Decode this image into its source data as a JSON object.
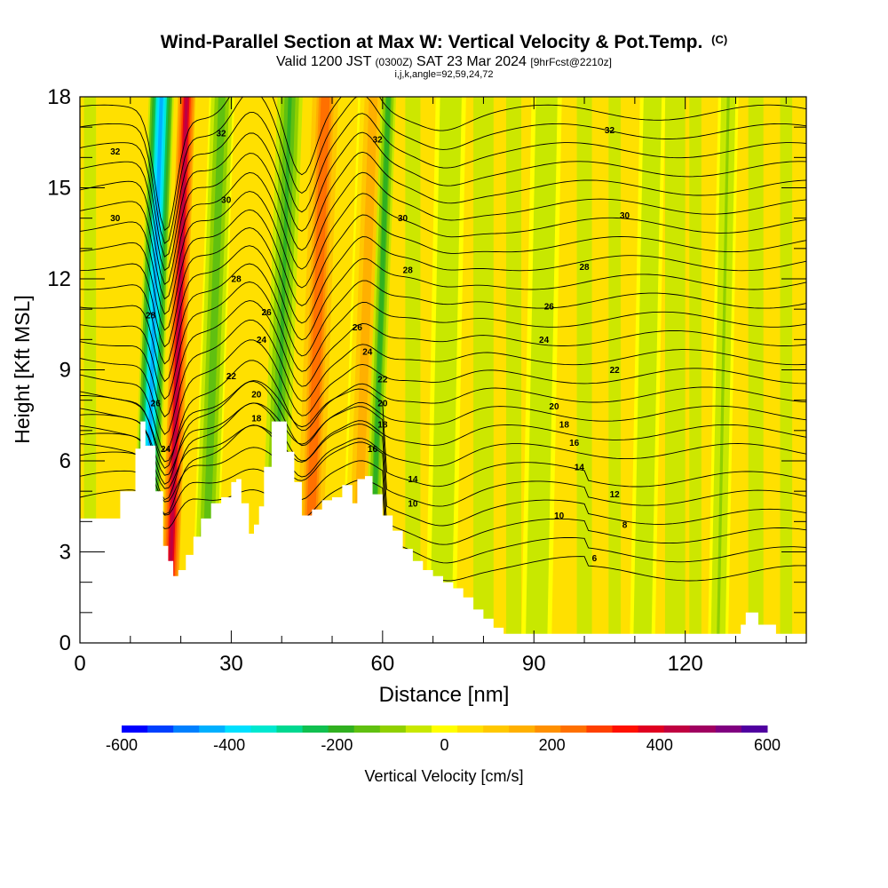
{
  "header": {
    "title": "Wind-Parallel Section at Max W: Vertical Velocity & Pot.Temp.",
    "copyright": "(C)",
    "valid_prefix": "Valid 1200 JST",
    "valid_utc": "(0300Z)",
    "valid_date": "SAT 23 Mar 2024",
    "forecast": "[9hrFcst@2210z]",
    "ijk": "i,j,k,angle=92,59,24,72"
  },
  "chart_data": {
    "type": "heatmap",
    "title": "Wind-Parallel Section at Max W: Vertical Velocity & Pot.Temp.",
    "xlabel": "Distance [nm]",
    "ylabel": "Height [Kft MSL]",
    "xlim": [
      0,
      144
    ],
    "ylim": [
      0,
      18
    ],
    "xticks": [
      0,
      30,
      60,
      90,
      120
    ],
    "yticks": [
      0,
      3,
      6,
      9,
      12,
      15,
      18
    ],
    "colorbar": {
      "label": "Vertical Velocity [cm/s]",
      "range": [
        -600,
        600
      ],
      "ticks": [
        -600,
        -400,
        -200,
        0,
        200,
        400,
        600
      ],
      "colors": [
        "#0000ff",
        "#0040ff",
        "#0080ff",
        "#00b0ff",
        "#00e0ff",
        "#00e8d0",
        "#00d890",
        "#10c050",
        "#30b020",
        "#60c010",
        "#90d000",
        "#c8e800",
        "#ffff00",
        "#ffe000",
        "#ffc800",
        "#ffb000",
        "#ff9000",
        "#ff7000",
        "#ff4000",
        "#ff1000",
        "#e00020",
        "#c00040",
        "#a00060",
        "#800080",
        "#5000a0"
      ]
    },
    "velocity_bands": [
      {
        "x": 14,
        "half_width": 2.5,
        "value": -450
      },
      {
        "x": 19,
        "half_width": 2.0,
        "value": 420
      },
      {
        "x": 26,
        "half_width": 2.5,
        "value": -150
      },
      {
        "x": 39.5,
        "half_width": 2.5,
        "value": -180
      },
      {
        "x": 46.5,
        "half_width": 3.0,
        "value": 260
      },
      {
        "x": 56,
        "half_width": 3.0,
        "value": 150
      },
      {
        "x": 59,
        "half_width": 1.5,
        "value": -200
      },
      {
        "x": 73,
        "half_width": 3.0,
        "value": -60
      },
      {
        "x": 92,
        "half_width": 3.0,
        "value": -60
      },
      {
        "x": 113,
        "half_width": 2.5,
        "value": -70
      },
      {
        "x": 128,
        "half_width": 2.0,
        "value": -80
      }
    ],
    "terrain": {
      "x": [
        0,
        7,
        8,
        11,
        12,
        13,
        15,
        16.5,
        17.5,
        18.5,
        19.5,
        21,
        22.5,
        24,
        26,
        28,
        30,
        31,
        32,
        33.5,
        34.5,
        35.5,
        36.5,
        38,
        40,
        41,
        42.5,
        44,
        46,
        48,
        50,
        52,
        54,
        55,
        56.5,
        58,
        60,
        62,
        64,
        66,
        68,
        70,
        72,
        74,
        76,
        78,
        80,
        82,
        84,
        86,
        88,
        90,
        100,
        110,
        120,
        128,
        131,
        132,
        133,
        134.5,
        138,
        140,
        144
      ],
      "y": [
        4.1,
        4.1,
        5.0,
        6.4,
        7.3,
        6.5,
        5.0,
        3.2,
        2.7,
        2.2,
        2.4,
        2.9,
        3.5,
        4.1,
        4.6,
        4.8,
        5.3,
        5.4,
        4.6,
        3.6,
        3.9,
        4.5,
        5.8,
        7.3,
        7.3,
        6.3,
        5.3,
        4.2,
        4.4,
        4.7,
        4.8,
        5.2,
        4.6,
        5.4,
        5.5,
        4.9,
        4.2,
        3.7,
        3.1,
        2.7,
        2.4,
        2.2,
        2.0,
        1.8,
        1.5,
        1.1,
        0.8,
        0.5,
        0.3,
        0.3,
        0.3,
        0.3,
        0.3,
        0.3,
        0.3,
        0.3,
        0.6,
        1.0,
        1.0,
        0.6,
        0.3,
        0.3,
        0.3
      ]
    },
    "theta_contours": [
      {
        "label": "6",
        "label_x": 102,
        "label_y": 2.8
      },
      {
        "label": "8",
        "label_x": 108,
        "label_y": 3.9
      },
      {
        "label": "10",
        "label_x": 95,
        "label_y": 4.2
      },
      {
        "label": "10",
        "label_x": 66,
        "label_y": 4.6
      },
      {
        "label": "12",
        "label_x": 106,
        "label_y": 4.9
      },
      {
        "label": "14",
        "label_x": 99,
        "label_y": 5.8
      },
      {
        "label": "14",
        "label_x": 66,
        "label_y": 5.4
      },
      {
        "label": "16",
        "label_x": 98,
        "label_y": 6.6
      },
      {
        "label": "16",
        "label_x": 58,
        "label_y": 6.4
      },
      {
        "label": "18",
        "label_x": 96,
        "label_y": 7.2
      },
      {
        "label": "18",
        "label_x": 60,
        "label_y": 7.2
      },
      {
        "label": "18",
        "label_x": 35,
        "label_y": 7.4
      },
      {
        "label": "20",
        "label_x": 94,
        "label_y": 7.8
      },
      {
        "label": "20",
        "label_x": 60,
        "label_y": 7.9
      },
      {
        "label": "20",
        "label_x": 35,
        "label_y": 8.2
      },
      {
        "label": "22",
        "label_x": 106,
        "label_y": 9.0
      },
      {
        "label": "22",
        "label_x": 60,
        "label_y": 8.7
      },
      {
        "label": "22",
        "label_x": 30,
        "label_y": 8.8
      },
      {
        "label": "24",
        "label_x": 92,
        "label_y": 10.0
      },
      {
        "label": "24",
        "label_x": 57,
        "label_y": 9.6
      },
      {
        "label": "24",
        "label_x": 36,
        "label_y": 10.0
      },
      {
        "label": "24",
        "label_x": 17,
        "label_y": 6.4
      },
      {
        "label": "26",
        "label_x": 93,
        "label_y": 11.1
      },
      {
        "label": "26",
        "label_x": 55,
        "label_y": 10.4
      },
      {
        "label": "26",
        "label_x": 37,
        "label_y": 10.9
      },
      {
        "label": "26",
        "label_x": 15,
        "label_y": 7.9
      },
      {
        "label": "28",
        "label_x": 100,
        "label_y": 12.4
      },
      {
        "label": "28",
        "label_x": 65,
        "label_y": 12.3
      },
      {
        "label": "28",
        "label_x": 31,
        "label_y": 12.0
      },
      {
        "label": "28",
        "label_x": 14,
        "label_y": 10.8
      },
      {
        "label": "30",
        "label_x": 108,
        "label_y": 14.1
      },
      {
        "label": "30",
        "label_x": 64,
        "label_y": 14.0
      },
      {
        "label": "30",
        "label_x": 29,
        "label_y": 14.6
      },
      {
        "label": "30",
        "label_x": 7,
        "label_y": 14.0
      },
      {
        "label": "32",
        "label_x": 105,
        "label_y": 16.9
      },
      {
        "label": "32",
        "label_x": 59,
        "label_y": 16.6
      },
      {
        "label": "32",
        "label_x": 28,
        "label_y": 16.8
      },
      {
        "label": "32",
        "label_x": 7,
        "label_y": 16.2
      }
    ]
  }
}
